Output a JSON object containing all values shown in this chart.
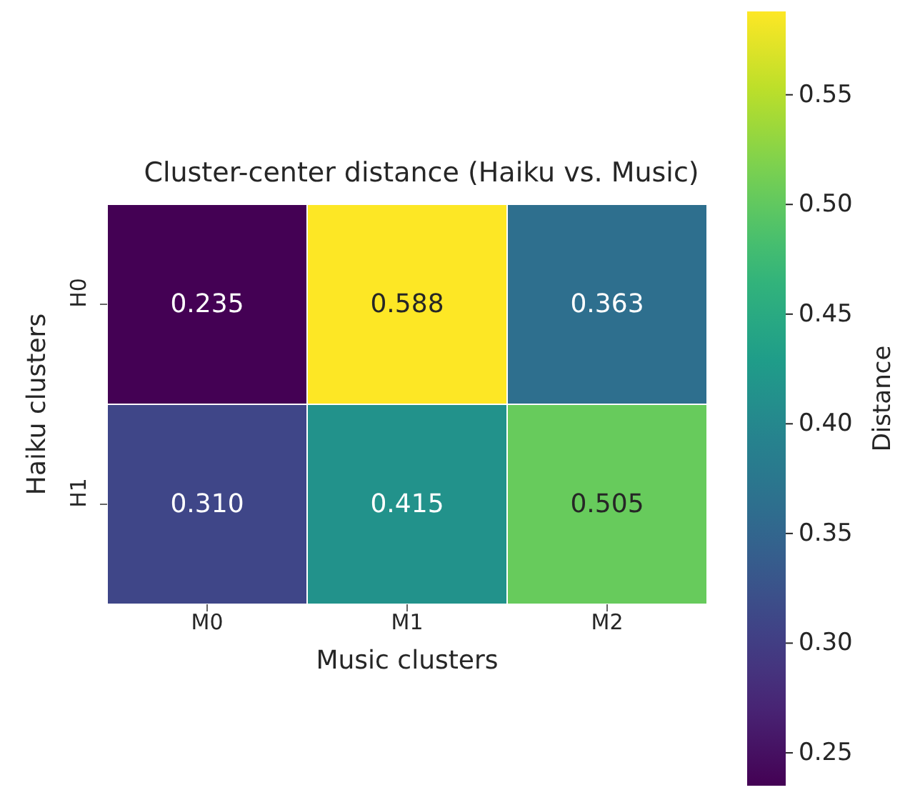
{
  "chart_data": {
    "type": "heatmap",
    "title": "Cluster-center distance (Haiku vs. Music)",
    "xlabel": "Music clusters",
    "ylabel": "Haiku clusters",
    "clabel": "Distance",
    "categories": [
      "M0",
      "M1",
      "M2"
    ],
    "y_categories": [
      "H0",
      "H1"
    ],
    "cells": [
      [
        0.235,
        0.588,
        0.363
      ],
      [
        0.31,
        0.415,
        0.505
      ]
    ],
    "cell_labels": [
      [
        "0.235",
        "0.588",
        "0.363"
      ],
      [
        "0.310",
        "0.415",
        "0.505"
      ]
    ],
    "clim": [
      0.235,
      0.588
    ],
    "cticks": [
      0.25,
      {
        "value": 0.3,
        "label": "0.30"
      },
      0.35,
      {
        "value": 0.4,
        "label": "0.40"
      },
      0.45,
      {
        "value": 0.5,
        "label": "0.50"
      },
      0.55
    ]
  }
}
